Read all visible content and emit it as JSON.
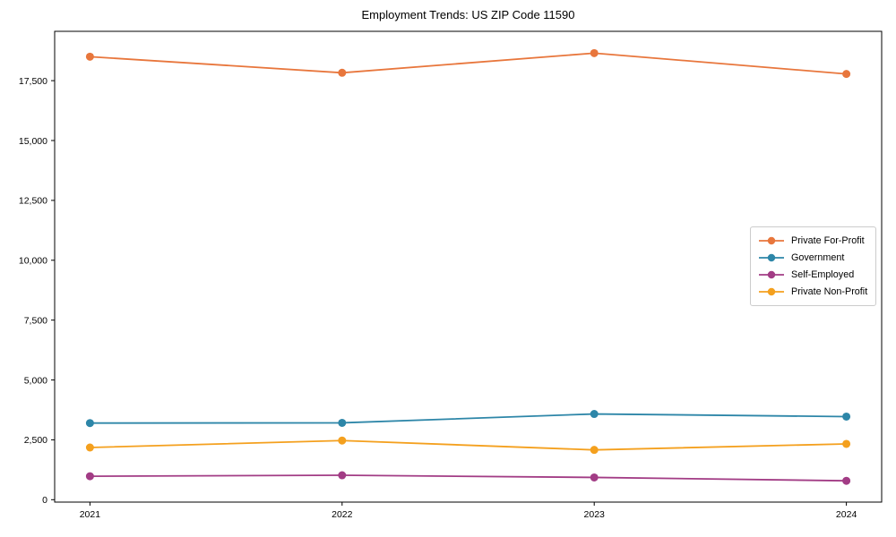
{
  "chart_data": {
    "type": "line",
    "title": "Employment Trends: US ZIP Code 11590",
    "xlabel": "",
    "ylabel": "",
    "x": [
      2021,
      2022,
      2023,
      2024
    ],
    "x_tick_labels": [
      "2021",
      "2022",
      "2023",
      "2024"
    ],
    "series": [
      {
        "name": "Private For-Profit",
        "color": "#E8763C",
        "values": [
          18500,
          17830,
          18650,
          17780
        ]
      },
      {
        "name": "Government",
        "color": "#2D86A8",
        "values": [
          3200,
          3210,
          3580,
          3470
        ]
      },
      {
        "name": "Self-Employed",
        "color": "#A23C85",
        "values": [
          980,
          1020,
          930,
          790
        ]
      },
      {
        "name": "Private Non-Profit",
        "color": "#F4A01E",
        "values": [
          2180,
          2470,
          2080,
          2330
        ]
      }
    ],
    "yticks": [
      0,
      2500,
      5000,
      7500,
      10000,
      12500,
      15000,
      17500
    ],
    "ylim": [
      -100,
      19560
    ],
    "xlim": [
      2020.86,
      2024.14
    ],
    "grid": false,
    "legend_position": "center right",
    "axis_color": "#000000",
    "background": "#ffffff"
  }
}
